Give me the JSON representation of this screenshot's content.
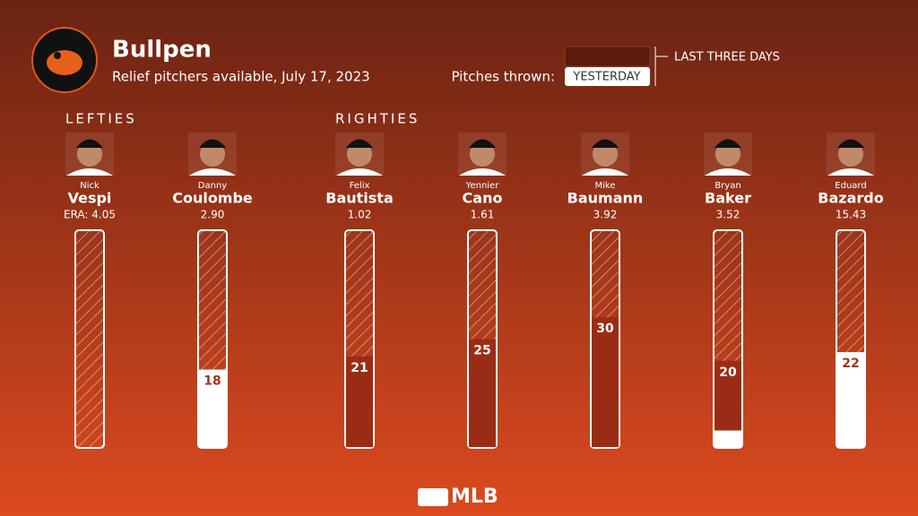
{
  "header": {
    "title": "Bullpen",
    "subtitle": "Relief pitchers available, July 17, 2023"
  },
  "footer": {
    "logo": "MLB"
  },
  "chart_data": {
    "type": "bar",
    "legend_label": "Pitches thrown:",
    "groups": [
      {
        "name": "LEFTIES",
        "players": [
          {
            "first": "Nick",
            "last": "Vespi",
            "era": "ERA: 4.05"
          },
          {
            "first": "Danny",
            "last": "Coulombe",
            "era": "2.90"
          }
        ]
      },
      {
        "name": "RIGHTIES",
        "players": [
          {
            "first": "Felix",
            "last": "Bautista",
            "era": "1.02"
          },
          {
            "first": "Yennier",
            "last": "Cano",
            "era": "1.61"
          },
          {
            "first": "Mike",
            "last": "Baumann",
            "era": "3.92"
          },
          {
            "first": "Bryan",
            "last": "Baker",
            "era": "3.52"
          },
          {
            "first": "Eduard",
            "last": "Bazardo",
            "era": "15.43"
          }
        ]
      }
    ],
    "series": [
      {
        "name": "LAST THREE DAYS",
        "color": "#9a2c16",
        "values": [
          0,
          18,
          21,
          25,
          30,
          20,
          22
        ]
      },
      {
        "name": "YESTERDAY",
        "color": "#ffffff",
        "values": [
          0,
          18,
          0,
          0,
          0,
          4,
          22
        ]
      }
    ],
    "ylim": [
      0,
      50
    ]
  }
}
